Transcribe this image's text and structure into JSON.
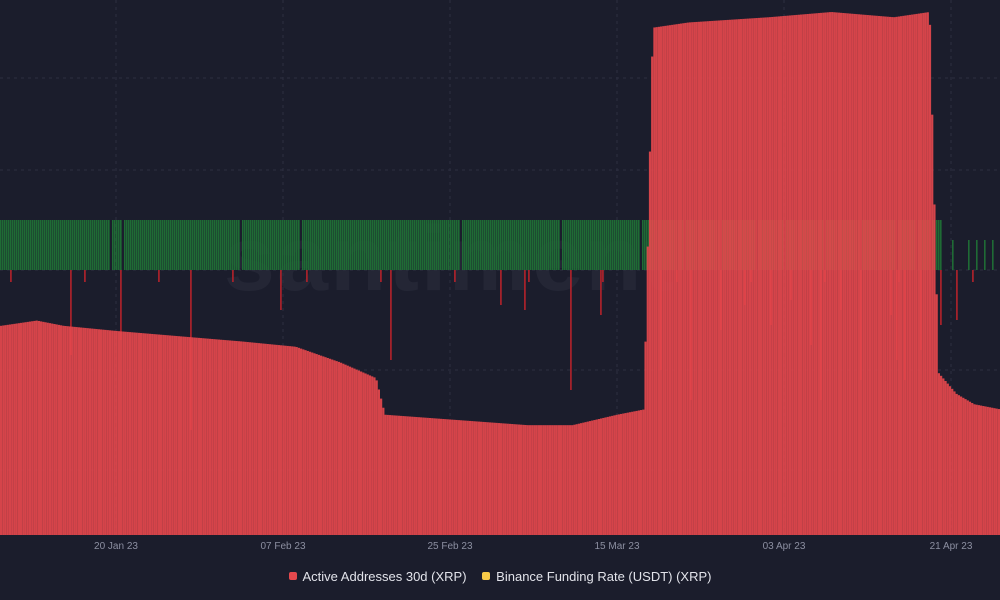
{
  "chart_data": {
    "type": "bar",
    "watermark": "santiment",
    "x_tick_labels": [
      "20 Jan 23",
      "07 Feb 23",
      "25 Feb 23",
      "15 Mar 23",
      "03 Apr 23",
      "21 Apr 23"
    ],
    "x_range": [
      "2023-01-05",
      "2023-04-27"
    ],
    "grid": true,
    "legend_position": "bottom-center",
    "series": [
      {
        "name": "Active Addresses 30d (XRP)",
        "color": "#e5484d",
        "axis": "left",
        "type": "bar",
        "points": [
          {
            "x": "2023-01-05",
            "y": 0.4
          },
          {
            "x": "2023-01-09",
            "y": 0.41
          },
          {
            "x": "2023-01-12",
            "y": 0.4
          },
          {
            "x": "2023-01-18",
            "y": 0.39
          },
          {
            "x": "2023-01-25",
            "y": 0.38
          },
          {
            "x": "2023-02-01",
            "y": 0.37
          },
          {
            "x": "2023-02-07",
            "y": 0.36
          },
          {
            "x": "2023-02-12",
            "y": 0.33
          },
          {
            "x": "2023-02-16",
            "y": 0.3
          },
          {
            "x": "2023-02-17",
            "y": 0.23
          },
          {
            "x": "2023-02-25",
            "y": 0.22
          },
          {
            "x": "2023-03-05",
            "y": 0.21
          },
          {
            "x": "2023-03-10",
            "y": 0.21
          },
          {
            "x": "2023-03-15",
            "y": 0.23
          },
          {
            "x": "2023-03-18",
            "y": 0.24
          },
          {
            "x": "2023-03-19",
            "y": 0.97
          },
          {
            "x": "2023-03-23",
            "y": 0.98
          },
          {
            "x": "2023-04-01",
            "y": 0.99
          },
          {
            "x": "2023-04-08",
            "y": 1.0
          },
          {
            "x": "2023-04-15",
            "y": 0.99
          },
          {
            "x": "2023-04-19",
            "y": 1.0
          },
          {
            "x": "2023-04-20",
            "y": 0.31
          },
          {
            "x": "2023-04-22",
            "y": 0.27
          },
          {
            "x": "2023-04-24",
            "y": 0.25
          },
          {
            "x": "2023-04-27",
            "y": 0.24
          }
        ]
      },
      {
        "name": "Binance Funding Rate (USDT) (XRP)",
        "color": "#f7c948",
        "positive_color": "#1f6b35",
        "negative_color": "#a3222b",
        "axis": "right",
        "type": "bar"
      }
    ]
  }
}
